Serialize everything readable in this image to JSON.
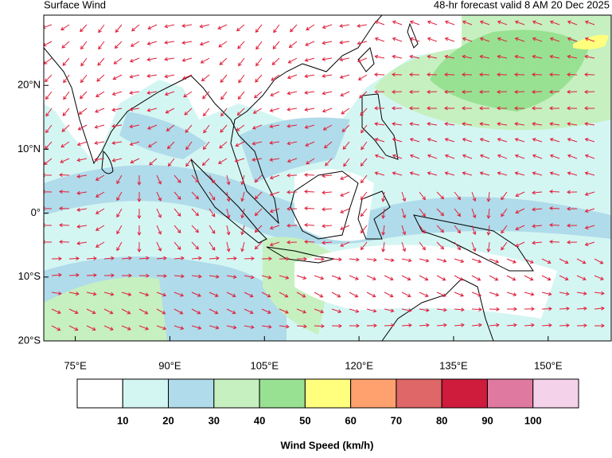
{
  "title": "Surface Wind",
  "subtitle": "48-hr forecast valid 8 AM 20 Dec 2025",
  "map": {
    "xlim": [
      70,
      160
    ],
    "ylim": [
      -20,
      31
    ],
    "xticks": [
      {
        "value": 75,
        "label": "75°E"
      },
      {
        "value": 90,
        "label": "90°E"
      },
      {
        "value": 105,
        "label": "105°E"
      },
      {
        "value": 120,
        "label": "120°E"
      },
      {
        "value": 135,
        "label": "135°E"
      },
      {
        "value": 150,
        "label": "150°E"
      }
    ],
    "yticks": [
      {
        "value": 20,
        "label": "20°N"
      },
      {
        "value": 10,
        "label": "10°N"
      },
      {
        "value": 0,
        "label": "0°"
      },
      {
        "value": -10,
        "label": "10°S"
      },
      {
        "value": -20,
        "label": "20°S"
      }
    ],
    "arrow_color": "#e0203c"
  },
  "colorbar": {
    "colors": [
      "#ffffff",
      "#d4f6f3",
      "#b0dbea",
      "#c6f0bf",
      "#98e192",
      "#ffff7d",
      "#ffa16e",
      "#e06767",
      "#cf1b3c",
      "#e079a0",
      "#f4d2ea"
    ],
    "ticks": [
      10,
      20,
      30,
      40,
      50,
      60,
      70,
      80,
      90,
      100
    ],
    "label": "Wind Speed (km/h)"
  }
}
